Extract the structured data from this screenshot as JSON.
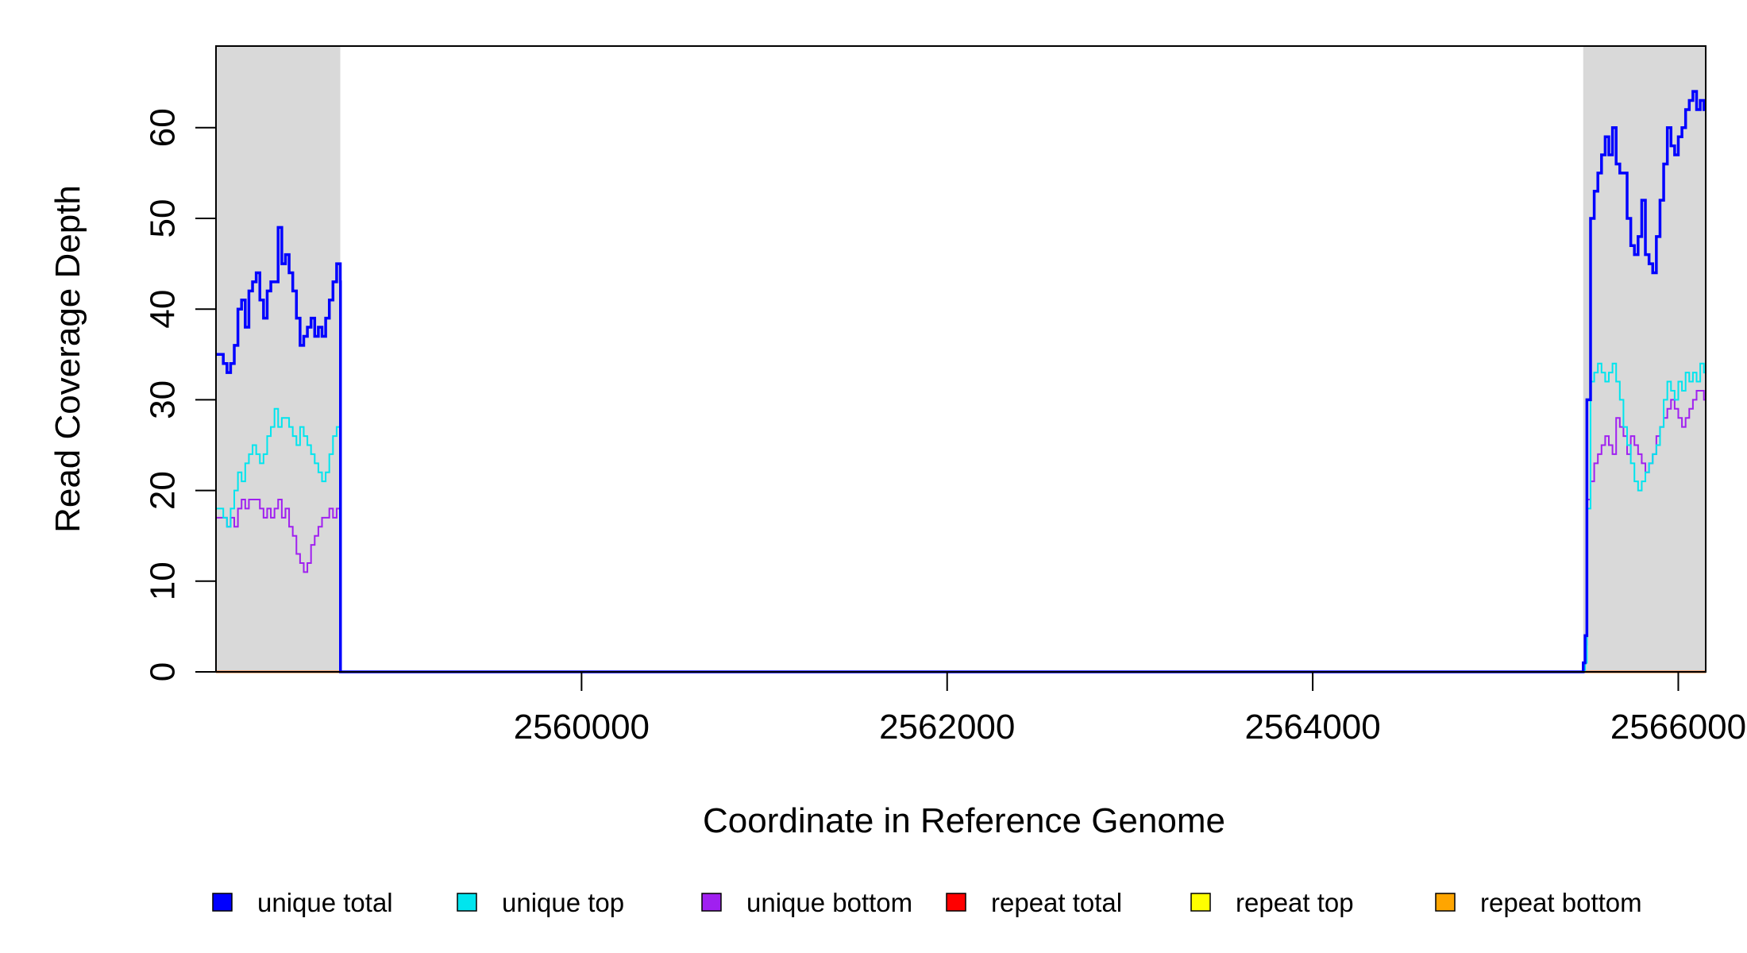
{
  "chart_data": {
    "type": "line",
    "xlabel": "Coordinate in Reference Genome",
    "ylabel": "Read Coverage Depth",
    "xlim": [
      2558000,
      2566150
    ],
    "ylim": [
      0,
      69
    ],
    "x_ticks": [
      2560000,
      2562000,
      2564000,
      2566000
    ],
    "x_tick_labels": [
      "2560000",
      "2562000",
      "2564000",
      "2566000"
    ],
    "y_ticks": [
      0,
      10,
      20,
      30,
      40,
      50,
      60
    ],
    "y_tick_labels": [
      "0",
      "10",
      "20",
      "30",
      "40",
      "50",
      "60"
    ],
    "grid": false,
    "legend_position": "bottom",
    "shaded_regions": [
      [
        2558000,
        2558680
      ],
      [
        2565480,
        2566150
      ]
    ],
    "shaded_color": "#d9d9d9",
    "series": [
      {
        "name": "unique total",
        "color": "#0000ff",
        "x": [
          2558000,
          2558040,
          2558060,
          2558080,
          2558100,
          2558120,
          2558140,
          2558160,
          2558180,
          2558200,
          2558220,
          2558240,
          2558260,
          2558280,
          2558300,
          2558320,
          2558340,
          2558360,
          2558380,
          2558400,
          2558420,
          2558440,
          2558460,
          2558480,
          2558500,
          2558520,
          2558540,
          2558560,
          2558580,
          2558600,
          2558620,
          2558640,
          2558660,
          2558680,
          2558681,
          2565300,
          2565480,
          2565490,
          2565500,
          2565520,
          2565540,
          2565560,
          2565580,
          2565600,
          2565620,
          2565640,
          2565660,
          2565680,
          2565700,
          2565720,
          2565740,
          2565760,
          2565780,
          2565800,
          2565820,
          2565840,
          2565860,
          2565880,
          2565900,
          2565920,
          2565940,
          2565960,
          2565980,
          2566000,
          2566020,
          2566040,
          2566060,
          2566080,
          2566100,
          2566120,
          2566140
        ],
        "y": [
          35,
          34,
          33,
          34,
          36,
          40,
          41,
          38,
          42,
          43,
          44,
          41,
          39,
          42,
          43,
          43,
          49,
          45,
          46,
          44,
          42,
          39,
          36,
          37,
          38,
          39,
          37,
          38,
          37,
          39,
          41,
          43,
          45,
          43,
          0,
          0,
          1,
          4,
          30,
          50,
          53,
          55,
          57,
          59,
          57,
          60,
          56,
          55,
          55,
          50,
          47,
          46,
          48,
          52,
          46,
          45,
          44,
          48,
          52,
          56,
          60,
          58,
          57,
          59,
          60,
          62,
          63,
          64,
          62,
          63,
          62
        ]
      },
      {
        "name": "unique top",
        "color": "#00e5ee",
        "x": [
          2558000,
          2558040,
          2558060,
          2558080,
          2558100,
          2558120,
          2558140,
          2558160,
          2558180,
          2558200,
          2558220,
          2558240,
          2558260,
          2558280,
          2558300,
          2558320,
          2558340,
          2558360,
          2558380,
          2558400,
          2558420,
          2558440,
          2558460,
          2558480,
          2558500,
          2558520,
          2558540,
          2558560,
          2558580,
          2558600,
          2558620,
          2558640,
          2558660,
          2558680,
          2558681,
          2565480,
          2565490,
          2565500,
          2565520,
          2565540,
          2565560,
          2565580,
          2565600,
          2565620,
          2565640,
          2565660,
          2565680,
          2565700,
          2565720,
          2565740,
          2565760,
          2565780,
          2565800,
          2565820,
          2565840,
          2565860,
          2565880,
          2565900,
          2565920,
          2565940,
          2565960,
          2565980,
          2566000,
          2566020,
          2566040,
          2566060,
          2566080,
          2566100,
          2566120,
          2566140
        ],
        "y": [
          18,
          17,
          16,
          18,
          20,
          22,
          21,
          23,
          24,
          25,
          24,
          23,
          24,
          26,
          27,
          29,
          27,
          28,
          28,
          27,
          26,
          25,
          27,
          26,
          25,
          24,
          23,
          22,
          21,
          22,
          24,
          26,
          27,
          25,
          0,
          0,
          1,
          18,
          32,
          33,
          34,
          33,
          32,
          33,
          34,
          32,
          30,
          27,
          25,
          23,
          21,
          20,
          21,
          22,
          23,
          24,
          25,
          27,
          30,
          32,
          31,
          30,
          32,
          31,
          33,
          32,
          33,
          32,
          34,
          33
        ]
      },
      {
        "name": "unique bottom",
        "color": "#a020f0",
        "x": [
          2558000,
          2558040,
          2558060,
          2558080,
          2558100,
          2558120,
          2558140,
          2558160,
          2558180,
          2558200,
          2558220,
          2558240,
          2558260,
          2558280,
          2558300,
          2558320,
          2558340,
          2558360,
          2558380,
          2558400,
          2558420,
          2558440,
          2558460,
          2558480,
          2558500,
          2558520,
          2558540,
          2558560,
          2558580,
          2558600,
          2558620,
          2558640,
          2558660,
          2558680,
          2558681,
          2565300,
          2565480,
          2565490,
          2565500,
          2565520,
          2565540,
          2565560,
          2565580,
          2565600,
          2565620,
          2565640,
          2565660,
          2565680,
          2565700,
          2565720,
          2565740,
          2565760,
          2565780,
          2565800,
          2565820,
          2565840,
          2565860,
          2565880,
          2565900,
          2565920,
          2565940,
          2565960,
          2565980,
          2566000,
          2566020,
          2566040,
          2566060,
          2566080,
          2566100,
          2566120,
          2566140
        ],
        "y": [
          17,
          17,
          16,
          17,
          16,
          18,
          19,
          18,
          19,
          19,
          19,
          18,
          17,
          18,
          17,
          18,
          19,
          17,
          18,
          16,
          15,
          13,
          12,
          11,
          12,
          14,
          15,
          16,
          17,
          17,
          18,
          17,
          18,
          17,
          0,
          0,
          1,
          3,
          19,
          21,
          23,
          24,
          25,
          26,
          25,
          24,
          28,
          27,
          26,
          24,
          26,
          25,
          24,
          23,
          22,
          23,
          24,
          26,
          27,
          28,
          29,
          30,
          29,
          28,
          27,
          28,
          29,
          30,
          31,
          31,
          30
        ]
      },
      {
        "name": "repeat total",
        "color": "#ff0000",
        "x": [
          2558000,
          2566150
        ],
        "y": [
          0,
          0
        ]
      },
      {
        "name": "repeat top",
        "color": "#ffff00",
        "x": [
          2558000,
          2566150
        ],
        "y": [
          0,
          0
        ]
      },
      {
        "name": "repeat bottom",
        "color": "#ffa500",
        "x": [
          2558000,
          2566150
        ],
        "y": [
          0,
          0
        ]
      }
    ]
  }
}
